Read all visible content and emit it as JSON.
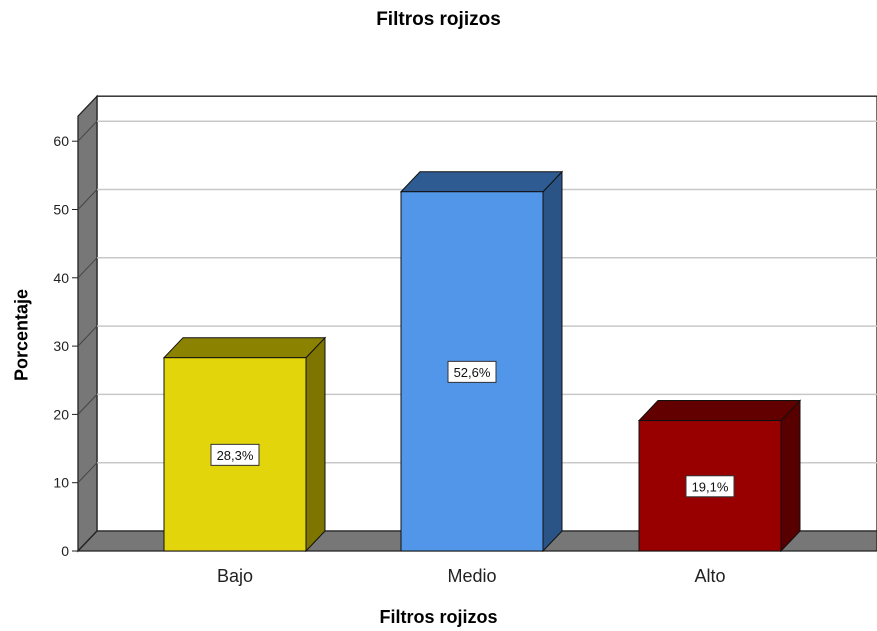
{
  "chart_data": {
    "type": "bar",
    "title": "Filtros rojizos",
    "xlabel": "Filtros rojizos",
    "ylabel": "Porcentaje",
    "ylim": [
      0,
      60
    ],
    "yticks": [
      0,
      10,
      20,
      30,
      40,
      50,
      60
    ],
    "categories": [
      "Bajo",
      "Medio",
      "Alto"
    ],
    "values": [
      28.3,
      52.6,
      19.1
    ],
    "data_labels": [
      "28,3%",
      "52,6%",
      "19,1%"
    ],
    "grid": true,
    "style": "3d",
    "colors": {
      "bars": [
        "#e2d50c",
        "#5196e8",
        "#980000"
      ],
      "bar_tops": [
        "#8b8200",
        "#2f5b93",
        "#620000"
      ],
      "bar_sides": [
        "#7d7500",
        "#2b5486",
        "#580000"
      ],
      "wall": "#777777",
      "grid": "#c8c8c8"
    }
  }
}
